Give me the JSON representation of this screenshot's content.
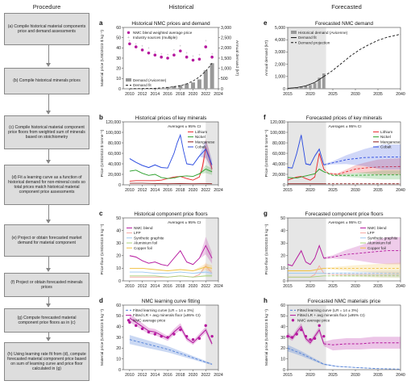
{
  "procedure": {
    "header": "Procedure",
    "steps": [
      "(a) Compile historical material components price and demand assessments",
      "(b) Compile historical minerals prices",
      "(c) Compile historical material component price floors from weighted sum of minerals based on stoichiometry",
      "(d) Fit a learning curve as a function of historical demand for non-mineral costs so total prices match historical material component price assessments",
      "(e) Project or obtain forecasted market demand for material component",
      "(f) Project or obtain forecasted minerals prices",
      "(g) Compute forecasted material component price floors as in (c)",
      "(h) Using learning rate fit from (d), compute forecasted material component price based on sum of learning curve and price floor calculated in (g)"
    ]
  },
  "columns": {
    "historical": "Historical",
    "forecasted": "Forecasted"
  },
  "colors": {
    "lithium": "#e8262a",
    "nickel": "#2ca02c",
    "manganese": "#8c1a1a",
    "cobalt": "#2b4be0",
    "nmc": "#b5179e",
    "lfp": "#f4a7a0",
    "graphite": "#9cc8f0",
    "aluminium": "#a9d07a",
    "copper": "#f0c040",
    "learning": "#4f7fd6",
    "shade": "#e6e6e6"
  },
  "chart_data": [
    {
      "id": "a",
      "type": "scatter",
      "title": "Historical NMC prices and demand",
      "ylabel": "Material price (USD2023 $ kg⁻¹)",
      "y2label": "Annual demand (kT)",
      "xlim": [
        2009,
        2024
      ],
      "ylim": [
        0,
        60
      ],
      "y2lim": [
        0,
        3000
      ],
      "xticks": [
        2010,
        2012,
        2014,
        2016,
        2018,
        2020,
        2022,
        2024
      ],
      "yticks": [
        0,
        10,
        20,
        30,
        40,
        50,
        60
      ],
      "y2ticks": [
        0,
        500,
        1000,
        1500,
        2000,
        2500,
        3000
      ],
      "legend": [
        "NMC blend weighted average price",
        "Industry sources (multiple)",
        "Demand (Avicenne)",
        "Demand fit"
      ],
      "nmc_price": {
        "x": [
          2010,
          2011,
          2012,
          2013,
          2014,
          2015,
          2016,
          2017,
          2018,
          2019,
          2020,
          2021,
          2022,
          2023
        ],
        "y": [
          44,
          41,
          38,
          35,
          33,
          31,
          30,
          33,
          37,
          31,
          28,
          29,
          41,
          31
        ]
      },
      "industry": {
        "x": [
          2010,
          2011,
          2012,
          2013,
          2014,
          2015,
          2016,
          2017,
          2018,
          2019,
          2020,
          2021,
          2022,
          2023
        ],
        "y": [
          47,
          44,
          42,
          40,
          36,
          34,
          33,
          38,
          42,
          35,
          32,
          33,
          47,
          34
        ]
      },
      "demand_bars": {
        "x": [
          2016,
          2017,
          2018,
          2019,
          2020,
          2021,
          2022,
          2023
        ],
        "y": [
          90,
          130,
          180,
          250,
          310,
          460,
          900,
          1250
        ]
      },
      "demand_fit": {
        "x": [
          2010,
          2012,
          2014,
          2016,
          2018,
          2019,
          2020,
          2021,
          2022,
          2023
        ],
        "y": [
          5,
          10,
          25,
          60,
          150,
          240,
          380,
          580,
          860,
          1250
        ]
      }
    },
    {
      "id": "b",
      "type": "line",
      "title": "Historical prices of key minerals",
      "ylabel": "Price (USD2023 $ tonne⁻¹)",
      "xlim": [
        2009,
        2024
      ],
      "ylim": [
        0,
        120000
      ],
      "xticks": [
        2010,
        2012,
        2014,
        2016,
        2018,
        2020,
        2022,
        2024
      ],
      "yticks": [
        0,
        20000,
        40000,
        60000,
        80000,
        100000,
        120000
      ],
      "annotation": "Averages ± 95% CI",
      "series": [
        {
          "name": "Lithium",
          "x": [
            2010,
            2011,
            2012,
            2013,
            2014,
            2015,
            2016,
            2017,
            2018,
            2019,
            2020,
            2021,
            2021.5,
            2022,
            2022.5,
            2023
          ],
          "y": [
            7000,
            8000,
            8000,
            8000,
            8000,
            9000,
            12000,
            15000,
            16000,
            12000,
            9000,
            15000,
            35000,
            70000,
            55000,
            30000
          ]
        },
        {
          "name": "Nickel",
          "x": [
            2010,
            2011,
            2012,
            2013,
            2014,
            2015,
            2016,
            2017,
            2018,
            2019,
            2020,
            2021,
            2022,
            2023
          ],
          "y": [
            26000,
            28000,
            22000,
            18000,
            20000,
            14000,
            12000,
            13000,
            16000,
            17000,
            16000,
            21000,
            30000,
            25000
          ]
        },
        {
          "name": "Manganese",
          "x": [
            2010,
            2012,
            2014,
            2016,
            2018,
            2020,
            2022,
            2023
          ],
          "y": [
            3000,
            3000,
            2500,
            2000,
            2500,
            2000,
            2500,
            2000
          ]
        },
        {
          "name": "Cobalt",
          "x": [
            2010,
            2011,
            2012,
            2013,
            2014,
            2015,
            2016,
            2017,
            2017.5,
            2018,
            2018.5,
            2019,
            2020,
            2021,
            2022,
            2023
          ],
          "y": [
            50000,
            43000,
            37000,
            33000,
            38000,
            33000,
            32000,
            60000,
            80000,
            95000,
            65000,
            40000,
            38000,
            55000,
            68000,
            38000
          ]
        }
      ]
    },
    {
      "id": "c",
      "type": "line",
      "title": "Historical component price floors",
      "ylabel": "Price floor (USD2023 $ kg⁻¹)",
      "xlim": [
        2009,
        2024
      ],
      "ylim": [
        0,
        50
      ],
      "xticks": [
        2010,
        2012,
        2014,
        2016,
        2018,
        2020,
        2022,
        2024
      ],
      "yticks": [
        0,
        10,
        20,
        30,
        40,
        50
      ],
      "annotation": "Averages ± 95% CI",
      "series": [
        {
          "name": "NMC blend",
          "x": [
            2010,
            2011,
            2012,
            2013,
            2014,
            2015,
            2016,
            2017,
            2018,
            2019,
            2020,
            2021,
            2022,
            2023
          ],
          "y": [
            20,
            19,
            16,
            14,
            15,
            13,
            12,
            18,
            24,
            15,
            13,
            18,
            28,
            18
          ]
        },
        {
          "name": "LFP",
          "x": [
            2010,
            2012,
            2014,
            2016,
            2018,
            2020,
            2021,
            2022,
            2023
          ],
          "y": [
            3,
            3,
            3,
            3,
            4,
            3,
            5,
            12,
            6
          ]
        },
        {
          "name": "Synthetic graphite",
          "x": [
            2010,
            2012,
            2014,
            2016,
            2018,
            2020,
            2022,
            2023
          ],
          "y": [
            7,
            7,
            6,
            6,
            7,
            6,
            7,
            6
          ]
        },
        {
          "name": "Aluminium foil",
          "x": [
            2010,
            2012,
            2014,
            2016,
            2018,
            2020,
            2022,
            2023
          ],
          "y": [
            4,
            4,
            4,
            3,
            4,
            3,
            4,
            4
          ]
        },
        {
          "name": "Copper foil",
          "x": [
            2010,
            2012,
            2014,
            2016,
            2018,
            2020,
            2022,
            2023
          ],
          "y": [
            10,
            10,
            9,
            8,
            9,
            8,
            11,
            10
          ]
        }
      ]
    },
    {
      "id": "d",
      "type": "line",
      "title": "NMC learning curve fitting",
      "ylabel": "Material price (USD2023 $ kg⁻¹)",
      "xlim": [
        2009,
        2024
      ],
      "ylim": [
        0,
        60
      ],
      "xticks": [
        2010,
        2012,
        2014,
        2016,
        2018,
        2020,
        2022,
        2024
      ],
      "yticks": [
        0,
        10,
        20,
        30,
        40,
        50,
        60
      ],
      "legend": [
        "Fitted learning curve (LR = 14 ± 3%)",
        "Fitted LR + avg minerals floor (±95% CI)",
        "NMC average price"
      ],
      "learning_curve": {
        "x": [
          2010,
          2012,
          2014,
          2016,
          2018,
          2020,
          2022,
          2023
        ],
        "y": [
          28,
          25,
          22,
          19,
          15,
          11,
          7,
          5
        ]
      },
      "lr_plus_floor": {
        "x": [
          2010,
          2011,
          2012,
          2013,
          2014,
          2015,
          2016,
          2017,
          2018,
          2019,
          2020,
          2021,
          2022,
          2023
        ],
        "y": [
          48,
          44,
          40,
          36,
          35,
          32,
          29,
          35,
          40,
          29,
          25,
          31,
          37,
          24
        ]
      },
      "nmc_avg": {
        "x": [
          2010,
          2011,
          2012,
          2013,
          2014,
          2015,
          2016,
          2017,
          2018,
          2019,
          2020,
          2021,
          2022,
          2023
        ],
        "y": [
          44,
          41,
          38,
          35,
          33,
          31,
          30,
          33,
          37,
          31,
          28,
          29,
          41,
          31
        ]
      }
    },
    {
      "id": "e",
      "type": "line",
      "title": "Forecasted NMC demand",
      "ylabel": "Annual demand (kT)",
      "xlim": [
        2015,
        2040
      ],
      "ylim": [
        0,
        5000
      ],
      "xticks": [
        2015,
        2020,
        2025,
        2030,
        2035,
        2040
      ],
      "yticks": [
        0,
        1000,
        2000,
        3000,
        4000,
        5000
      ],
      "legend": [
        "Historical demand (Avicenne)",
        "Demand fit",
        "Demand projection"
      ],
      "demand_bars": {
        "x": [
          2016,
          2017,
          2018,
          2019,
          2020,
          2021,
          2022,
          2023
        ],
        "y": [
          90,
          130,
          180,
          250,
          310,
          460,
          900,
          1250
        ]
      },
      "demand_fit": {
        "x": [
          2015,
          2017,
          2019,
          2021,
          2023
        ],
        "y": [
          40,
          100,
          240,
          520,
          1000
        ]
      },
      "projection": {
        "x": [
          2023,
          2025,
          2027,
          2029,
          2031,
          2033,
          2035,
          2037,
          2040
        ],
        "y": [
          1000,
          1500,
          2100,
          2700,
          3200,
          3600,
          3950,
          4200,
          4450
        ]
      }
    },
    {
      "id": "f",
      "type": "line",
      "title": "Forecasted prices of key minerals",
      "ylabel": "Price (USD2023 $ tonne⁻¹)",
      "xlim": [
        2015,
        2040
      ],
      "ylim": [
        0,
        120000
      ],
      "xticks": [
        2015,
        2020,
        2025,
        2030,
        2035,
        2040
      ],
      "yticks": [
        0,
        20000,
        40000,
        60000,
        80000,
        100000,
        120000
      ],
      "annotation": "Averages ± 95% CI",
      "series": [
        {
          "name": "Lithium",
          "x": [
            2015,
            2016,
            2017,
            2018,
            2019,
            2020,
            2021,
            2022,
            2023,
            2024,
            2026,
            2028,
            2030,
            2032,
            2035,
            2040
          ],
          "y": [
            9000,
            12000,
            15000,
            16000,
            12000,
            9000,
            15000,
            60000,
            30000,
            22000,
            20000,
            25000,
            30000,
            32000,
            34000,
            35000
          ]
        },
        {
          "name": "Nickel",
          "x": [
            2015,
            2017,
            2019,
            2021,
            2022,
            2023,
            2025,
            2028,
            2032,
            2036,
            2040
          ],
          "y": [
            14000,
            13000,
            17000,
            21000,
            30000,
            25000,
            18000,
            18000,
            18500,
            19000,
            19000
          ]
        },
        {
          "name": "Manganese",
          "x": [
            2015,
            2020,
            2023,
            2030,
            2040
          ],
          "y": [
            2000,
            2000,
            2000,
            2000,
            2000
          ]
        },
        {
          "name": "Cobalt",
          "x": [
            2015,
            2016,
            2017,
            2018,
            2019,
            2020,
            2021,
            2022,
            2023,
            2025,
            2028,
            2032,
            2036,
            2040
          ],
          "y": [
            33000,
            32000,
            60000,
            95000,
            40000,
            38000,
            55000,
            68000,
            38000,
            42000,
            48000,
            52000,
            53000,
            53000
          ]
        }
      ]
    },
    {
      "id": "g",
      "type": "line",
      "title": "Forecasted component price floors",
      "ylabel": "Price floor (USD2023 $ kg⁻¹)",
      "xlim": [
        2015,
        2040
      ],
      "ylim": [
        0,
        50
      ],
      "xticks": [
        2015,
        2020,
        2025,
        2030,
        2035,
        2040
      ],
      "yticks": [
        0,
        10,
        20,
        30,
        40,
        50
      ],
      "annotation": "Averages ± 95% CI",
      "series": [
        {
          "name": "NMC blend",
          "x": [
            2015,
            2016,
            2017,
            2018,
            2019,
            2020,
            2021,
            2022,
            2023,
            2025,
            2028,
            2031,
            2034,
            2037,
            2040
          ],
          "y": [
            13,
            12,
            18,
            24,
            15,
            13,
            18,
            28,
            18,
            19,
            21,
            22,
            23,
            24,
            24
          ]
        },
        {
          "name": "LFP",
          "x": [
            2015,
            2020,
            2021,
            2022,
            2023,
            2025,
            2030,
            2035,
            2040
          ],
          "y": [
            3,
            3,
            5,
            12,
            6,
            5,
            5,
            5,
            5
          ]
        },
        {
          "name": "Synthetic graphite",
          "x": [
            2015,
            2020,
            2023,
            2030,
            2040
          ],
          "y": [
            6,
            6,
            6,
            6,
            6
          ]
        },
        {
          "name": "Aluminium foil",
          "x": [
            2015,
            2020,
            2023,
            2030,
            2040
          ],
          "y": [
            3,
            3,
            4,
            4,
            4
          ]
        },
        {
          "name": "Copper foil",
          "x": [
            2015,
            2020,
            2023,
            2030,
            2040
          ],
          "y": [
            8,
            8,
            10,
            10,
            10
          ]
        }
      ]
    },
    {
      "id": "h",
      "type": "line",
      "title": "Forecasted NMC materials price",
      "ylabel": "Material price (USD2023 $ kg⁻¹)",
      "xlim": [
        2015,
        2040
      ],
      "ylim": [
        0,
        60
      ],
      "xticks": [
        2015,
        2020,
        2025,
        2030,
        2035,
        2040
      ],
      "yticks": [
        0,
        10,
        20,
        30,
        40,
        50,
        60
      ],
      "legend": [
        "Fitted learning curve (LR = 14 ± 3%)",
        "Fitted LR + avg minerals floor (±95% CI)",
        "NMC average price"
      ],
      "learning_curve": {
        "x": [
          2015,
          2018,
          2021,
          2023,
          2026,
          2030,
          2035,
          2040
        ],
        "y": [
          20,
          15,
          9,
          5,
          3,
          2,
          1,
          0.5
        ]
      },
      "lr_plus_floor": {
        "x": [
          2015,
          2016,
          2017,
          2018,
          2019,
          2020,
          2021,
          2022,
          2023,
          2025,
          2028,
          2031,
          2034,
          2037,
          2040
        ],
        "y": [
          32,
          29,
          35,
          40,
          29,
          25,
          31,
          37,
          24,
          23,
          24,
          24,
          25,
          25,
          25
        ]
      },
      "nmc_avg": {
        "x": [
          2015,
          2016,
          2017,
          2018,
          2019,
          2020,
          2021,
          2022,
          2023
        ],
        "y": [
          31,
          30,
          33,
          37,
          31,
          28,
          29,
          41,
          31
        ]
      }
    }
  ]
}
